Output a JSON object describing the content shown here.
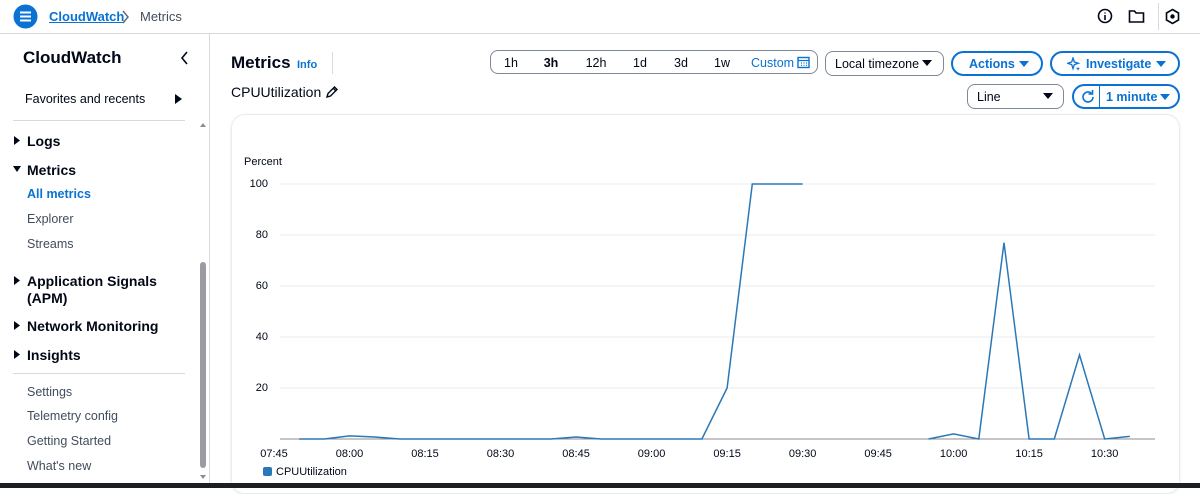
{
  "top_bar": {
    "breadcrumb": [
      "CloudWatch",
      "Metrics"
    ]
  },
  "sidebar": {
    "title": "CloudWatch",
    "favorites": "Favorites and recents",
    "nav": [
      {
        "label": "Logs"
      },
      {
        "label": "Metrics",
        "children": [
          "All metrics",
          "Explorer",
          "Streams"
        ]
      },
      {
        "label": "Application Signals (APM)"
      },
      {
        "label": "Network Monitoring"
      },
      {
        "label": "Insights"
      }
    ],
    "links": [
      "Settings",
      "Telemetry config",
      "Getting Started",
      "What's new"
    ]
  },
  "main": {
    "title": "Metrics",
    "info": "Info",
    "time_ranges": [
      "1h",
      "3h",
      "12h",
      "1d",
      "3d",
      "1w"
    ],
    "custom": "Custom",
    "timezone": "Local timezone",
    "actions": "Actions",
    "investigate": "Investigate",
    "metric_name": "CPUUtilization",
    "view_type": "Line",
    "period": "1 minute"
  },
  "chart_data": {
    "type": "line",
    "y_label": "Percent",
    "categories": [
      "07:45",
      null,
      null,
      "08:00",
      null,
      null,
      "08:15",
      null,
      null,
      "08:30",
      null,
      null,
      "08:45",
      null,
      null,
      "09:00",
      null,
      null,
      "09:15",
      null,
      null,
      "09:30",
      null,
      null,
      "09:45",
      null,
      null,
      "10:00",
      null,
      null,
      "10:15",
      null,
      null,
      "10:30",
      null,
      null
    ],
    "series": [
      {
        "name": "CPUUtilization",
        "color": "#2a78b8",
        "values": [
          null,
          0,
          0,
          1.2,
          0.8,
          0,
          0,
          0,
          0,
          0,
          0,
          0,
          0.8,
          0,
          0,
          0,
          0,
          0,
          20,
          100,
          100,
          100,
          null,
          null,
          null,
          null,
          0,
          2,
          0,
          77,
          0,
          0,
          33,
          0,
          1,
          null
        ]
      }
    ],
    "ylim": [
      0,
      100
    ],
    "yticks": [
      20,
      40,
      60,
      80,
      100
    ],
    "grid": true
  }
}
